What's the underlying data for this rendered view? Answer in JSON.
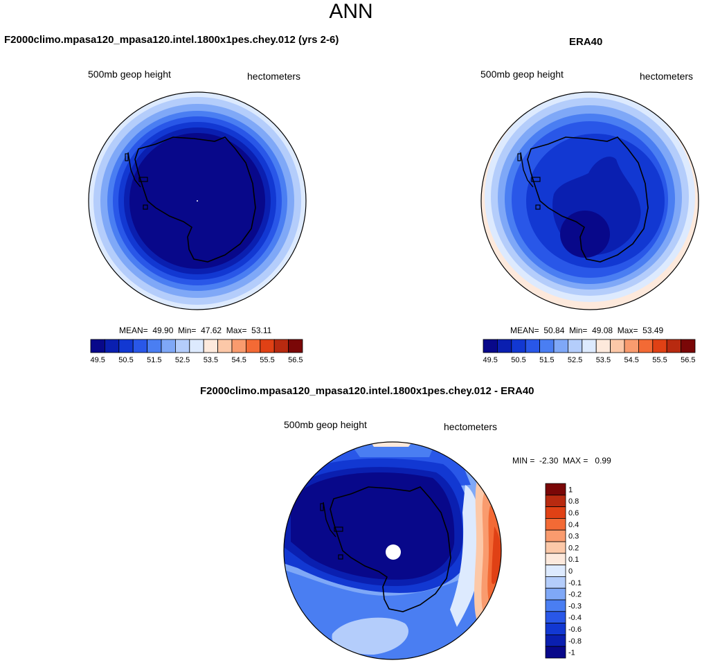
{
  "figure": {
    "title": "ANN"
  },
  "colors": {
    "full_scale": [
      "#08088a",
      "#0a1fb0",
      "#1238d2",
      "#2957e8",
      "#4a7ef2",
      "#7fa8f7",
      "#b4cdfb",
      "#ddeafe",
      "#fde9dc",
      "#fcc8a8",
      "#f99b6e",
      "#f36a35",
      "#e04115",
      "#b82a10",
      "#7a0707"
    ],
    "diff_scale": [
      "#08088a",
      "#0a1fb0",
      "#1238d2",
      "#2957e8",
      "#4a7ef2",
      "#7fa8f7",
      "#b4cdfb",
      "#ddeafe",
      "#fde9dc",
      "#fcc8a8",
      "#f99b6e",
      "#f36a35",
      "#e04115",
      "#b82a10",
      "#7a0707"
    ],
    "coast": "#000000",
    "pole_mask": "#ffffff"
  },
  "chart_data": [
    {
      "type": "heatmap",
      "subtype": "polar-contour-map",
      "title": "F2000climo.mpasa120_mpasa120.intel.1800x1pes.chey.012 (yrs 2-6)",
      "left_label": "500mb geop height",
      "right_label": "hectometers",
      "stats": {
        "mean_label": "MEAN=",
        "mean": "49.90",
        "min_label": "Min=",
        "min": "47.62",
        "max_label": "Max=",
        "max": "53.11"
      },
      "colorbar_ticks": [
        "49.5",
        "50.5",
        "51.5",
        "52.5",
        "53.5",
        "54.5",
        "55.5",
        "56.5"
      ],
      "levels": [
        49.5,
        50,
        50.5,
        51,
        51.5,
        52,
        52.5,
        53,
        53.5,
        54,
        54.5,
        55,
        55.5,
        56,
        56.5
      ]
    },
    {
      "type": "heatmap",
      "subtype": "polar-contour-map",
      "title": "ERA40",
      "left_label": "500mb geop height",
      "right_label": "hectometers",
      "stats": {
        "mean_label": "MEAN=",
        "mean": "50.84",
        "min_label": "Min=",
        "min": "49.08",
        "max_label": "Max=",
        "max": "53.49"
      },
      "colorbar_ticks": [
        "49.5",
        "50.5",
        "51.5",
        "52.5",
        "53.5",
        "54.5",
        "55.5",
        "56.5"
      ],
      "levels": [
        49.5,
        50,
        50.5,
        51,
        51.5,
        52,
        52.5,
        53,
        53.5,
        54,
        54.5,
        55,
        55.5,
        56,
        56.5
      ]
    },
    {
      "type": "heatmap",
      "subtype": "polar-contour-map",
      "title": "F2000climo.mpasa120_mpasa120.intel.1800x1pes.chey.012 - ERA40",
      "left_label": "500mb geop height",
      "right_label": "hectometers",
      "stats": {
        "min_label": "MIN =",
        "min": "-2.30",
        "max_label": "MAX =",
        "max": "0.99"
      },
      "colorbar_ticks": [
        "1",
        "0.8",
        "0.6",
        "0.4",
        "0.3",
        "0.2",
        "0.1",
        "0",
        "-0.1",
        "-0.2",
        "-0.3",
        "-0.4",
        "-0.6",
        "-0.8",
        "-1"
      ],
      "levels": [
        -1,
        -0.8,
        -0.6,
        -0.4,
        -0.3,
        -0.2,
        -0.1,
        0,
        0.1,
        0.2,
        0.3,
        0.4,
        0.6,
        0.8,
        1
      ]
    }
  ]
}
